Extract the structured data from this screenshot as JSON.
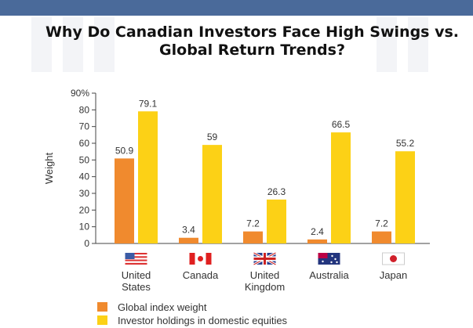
{
  "title": {
    "line1": "Why Do Canadian Investors Face High Swings vs.",
    "line2": "Global  Return Trends?"
  },
  "colors": {
    "header": "#4a6a9a",
    "global": "#f08a2e",
    "domestic": "#fcd116"
  },
  "chart_data": {
    "type": "bar",
    "ylabel": "Weight",
    "ylim": [
      0,
      90
    ],
    "yticks": [
      "0",
      "10",
      "20",
      "30",
      "40",
      "50",
      "60",
      "70",
      "80",
      "90%"
    ],
    "categories": [
      {
        "line1": "United",
        "line2": "States",
        "flag": "us-flag-icon"
      },
      {
        "line1": "Canada",
        "line2": "",
        "flag": "canada-flag-icon"
      },
      {
        "line1": "United",
        "line2": "Kingdom",
        "flag": "uk-flag-icon"
      },
      {
        "line1": "Australia",
        "line2": "",
        "flag": "australia-flag-icon"
      },
      {
        "line1": "Japan",
        "line2": "",
        "flag": "japan-flag-icon"
      }
    ],
    "series": [
      {
        "name": "Global index weight",
        "values": [
          50.9,
          3.4,
          7.2,
          2.4,
          7.2
        ],
        "labels": [
          "50.9",
          "3.4",
          "7.2",
          "2.4",
          "7.2"
        ]
      },
      {
        "name": "Investor holdings in domestic equities",
        "values": [
          79.1,
          59,
          26.3,
          66.5,
          55.2
        ],
        "labels": [
          "79.1",
          "59",
          "26.3",
          "66.5",
          "55.2"
        ]
      }
    ],
    "legend": "bottom-left"
  }
}
